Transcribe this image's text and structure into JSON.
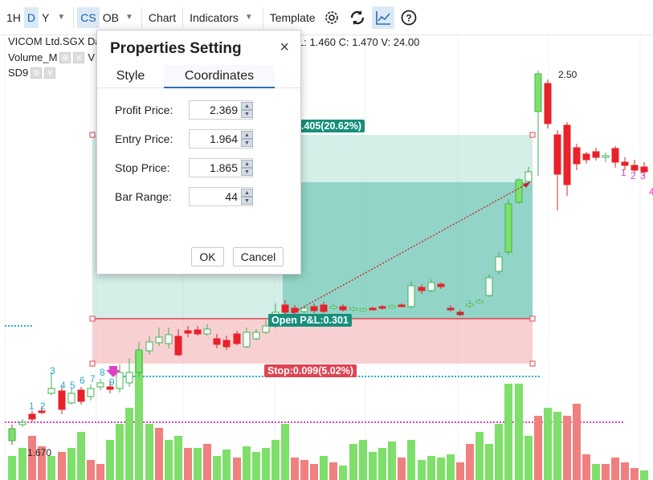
{
  "toolbar": {
    "intervals": [
      "1H",
      "D",
      "Y"
    ],
    "active_interval": "D",
    "chart_style": "CS",
    "ob_label": "OB",
    "chart_label": "Chart",
    "indicators_label": "Indicators",
    "template_label": "Template",
    "icons": [
      "gear-icon",
      "refresh-icon",
      "chart-line-icon",
      "help-icon"
    ]
  },
  "legend": {
    "symbol_title": "VICOM Ltd.SGX Da",
    "ohlc_text": "L: 1.460  C: 1.470  V: 24.00",
    "volume_label": "Volume_M",
    "volume_suffix": "V",
    "sd9_label": "SD9"
  },
  "chart_labels": {
    "high_label": "2.50",
    "low_label": "1.670",
    "profit_tag": ".405(20.62%)",
    "open_pl_tag": "Open P&L:0.301",
    "stop_tag": "Stop:0.099(5.02%)",
    "seq_numbers": [
      "1",
      "2",
      "3",
      "4",
      "5",
      "6",
      "7",
      "8",
      "9"
    ],
    "right_numbers": [
      "1",
      "2",
      "3",
      "4"
    ]
  },
  "dialog": {
    "title": "Properties Setting",
    "close_label": "×",
    "tabs": [
      "Style",
      "Coordinates"
    ],
    "active_tab": "Coordinates",
    "fields": [
      {
        "label": "Profit Price:",
        "value": "2.369"
      },
      {
        "label": "Entry Price:",
        "value": "1.964"
      },
      {
        "label": "Stop Price:",
        "value": "1.865"
      },
      {
        "label": "Bar Range:",
        "value": "44"
      }
    ],
    "ok_label": "OK",
    "cancel_label": "Cancel"
  },
  "colors": {
    "up": "#7ee06a",
    "down": "#e8212a",
    "profit_zone": "#9fd9cc",
    "stop_zone": "#f4a9ad",
    "accent": "#2f6eb5",
    "tag_green": "#178f7c",
    "tag_red": "#e04452"
  },
  "chart_data": {
    "type": "candlestick",
    "profit_price": 2.369,
    "entry_price": 1.964,
    "stop_price": 1.865,
    "high_label": 2.5,
    "low_label": 1.67
  }
}
